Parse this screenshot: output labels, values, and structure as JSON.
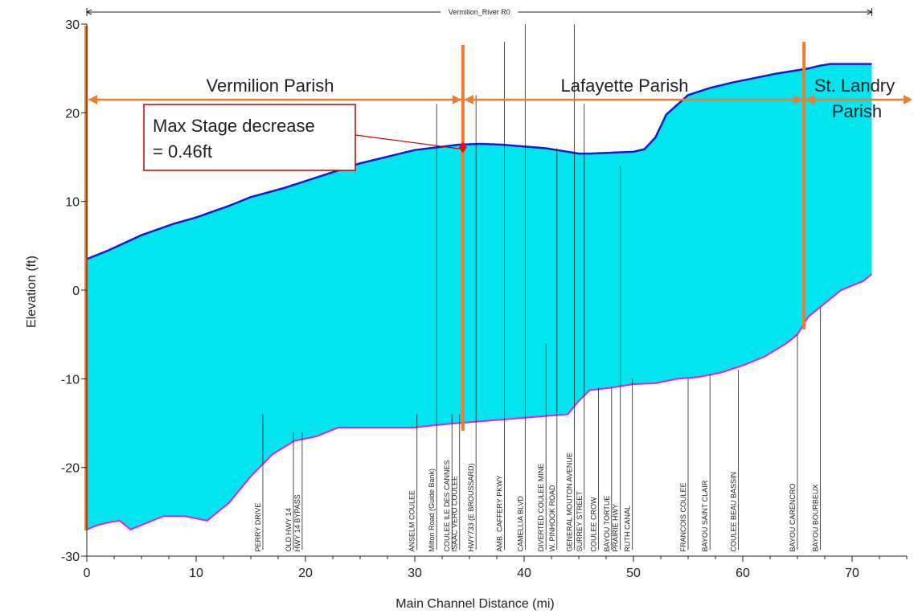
{
  "chart_data": {
    "type": "area",
    "reach_name": "Vermilion_River R0",
    "xlabel": "Main Channel Distance (mi)",
    "ylabel": "Elevation (ft)",
    "xlim": [
      0,
      75
    ],
    "ylim": [
      -30,
      30
    ],
    "x_ticks": [
      0,
      10,
      20,
      30,
      40,
      50,
      60,
      70
    ],
    "y_ticks": [
      30,
      20,
      10,
      0,
      -10,
      -20,
      -30
    ],
    "grid": false,
    "colors": {
      "water_fill": "#00e5ee",
      "water_surface": "#1a1acc",
      "thalweg": "#e020e0",
      "parish_lines": "#ed7d31",
      "annotation_box": "#c00000",
      "marker": "#ff0000"
    },
    "series": [
      {
        "name": "Water Surface",
        "x": [
          0,
          2,
          5,
          8,
          10,
          13,
          15,
          18,
          20,
          23,
          25,
          28,
          30,
          32,
          34,
          36,
          38,
          40,
          42,
          43,
          44,
          45,
          46,
          48,
          50,
          51,
          52,
          53,
          55,
          57,
          59,
          61,
          63,
          65,
          66,
          67,
          68,
          70,
          71.8
        ],
        "y": [
          3.5,
          4.5,
          6.2,
          7.5,
          8.2,
          9.5,
          10.5,
          11.5,
          12.3,
          13.5,
          14.3,
          15.2,
          15.8,
          16.1,
          16.4,
          16.5,
          16.4,
          16.2,
          16.0,
          15.8,
          15.6,
          15.4,
          15.4,
          15.5,
          15.6,
          15.9,
          17.2,
          19.8,
          22.0,
          22.8,
          23.4,
          23.9,
          24.4,
          24.8,
          25.0,
          25.3,
          25.5,
          25.5,
          25.5
        ]
      },
      {
        "name": "Thalweg",
        "x": [
          0,
          1,
          2,
          3,
          4,
          5,
          7,
          9,
          11,
          13,
          15,
          17,
          19,
          21,
          23,
          25,
          27,
          28,
          30,
          32,
          34,
          36,
          38,
          40,
          42,
          44,
          45,
          46,
          48,
          50,
          52,
          54,
          56,
          58,
          60,
          62,
          64,
          65,
          66,
          67,
          68,
          69,
          70,
          71,
          71.8
        ],
        "y": [
          -27,
          -26.5,
          -26.2,
          -26,
          -27,
          -26.5,
          -25.5,
          -25.5,
          -26,
          -24,
          -21,
          -18.5,
          -17,
          -16.5,
          -15.5,
          -15.5,
          -15.5,
          -15.5,
          -15.5,
          -15.2,
          -15,
          -14.8,
          -14.6,
          -14.4,
          -14.2,
          -14,
          -12.5,
          -11.3,
          -11,
          -10.6,
          -10.5,
          -10,
          -9.8,
          -9.3,
          -8.5,
          -7.5,
          -6,
          -5,
          -3,
          -2,
          -1,
          0,
          0.5,
          1,
          1.8
        ]
      }
    ],
    "parish_boundaries": [
      0,
      34.4,
      65.6
    ],
    "parishes": [
      {
        "name": "Vermilion Parish"
      },
      {
        "name": "Lafayette Parish"
      },
      {
        "name": "St. Landry Parish",
        "line1": "St. Landry",
        "line2": "Parish"
      }
    ],
    "annotation": {
      "line1": "Max Stage decrease",
      "line2": "= 0.46ft",
      "x": 34.4,
      "y": 16.1
    },
    "cross_sections": [
      {
        "label": "PERRY DRIVE",
        "x": 16.1,
        "top": -14
      },
      {
        "label": "OLD HWY 14",
        "x": 18.9,
        "top": -16
      },
      {
        "label": "HWY 14 BYPASS",
        "x": 19.7,
        "top": -16
      },
      {
        "label": "ANSELM COULEE",
        "x": 30.2,
        "top": -14
      },
      {
        "label": "Milton Road (Guide Bank)",
        "x": 32.0,
        "top": 21
      },
      {
        "label": "COULEE ILE DES CANNES",
        "x": 33.4,
        "top": -14
      },
      {
        "label": "ISAAC VERO COULEE",
        "x": 34.1,
        "top": -14
      },
      {
        "label": "HWY733 (E BROUSSARD)",
        "x": 35.6,
        "top": 22
      },
      {
        "label": "AMB. CAFFERY PKWY",
        "x": 38.2,
        "top": 28
      },
      {
        "label": "CAMELLIA BLVD",
        "x": 40.1,
        "top": 30
      },
      {
        "label": "DIVERTED COULEE MINE",
        "x": 42.0,
        "top": -6
      },
      {
        "label": "W. PINHOOK ROAD",
        "x": 43.0,
        "top": 16
      },
      {
        "label": "GENERAL MOUTON AVENUE",
        "x": 44.6,
        "top": 30
      },
      {
        "label": "SURREY STREET",
        "x": 45.5,
        "top": 21
      },
      {
        "label": "COULEE CROW",
        "x": 46.8,
        "top": -11
      },
      {
        "label": "BAYOU TORTUE",
        "x": 48.0,
        "top": -11
      },
      {
        "label": "PRAIRIE HWY",
        "x": 48.8,
        "top": 14
      },
      {
        "label": "RUTH CANAL",
        "x": 49.9,
        "top": -10
      },
      {
        "label": "FRANCOIS COULEE",
        "x": 55.0,
        "top": -10
      },
      {
        "label": "BAYOU SAINT CLAIR",
        "x": 57.0,
        "top": -9.5
      },
      {
        "label": "COULEE BEAU BASSIN",
        "x": 59.6,
        "top": -9
      },
      {
        "label": "BAYOU CARENCRO",
        "x": 65.0,
        "top": -5
      },
      {
        "label": "BAYOU BOURBEUX",
        "x": 67.1,
        "top": -2
      }
    ]
  }
}
